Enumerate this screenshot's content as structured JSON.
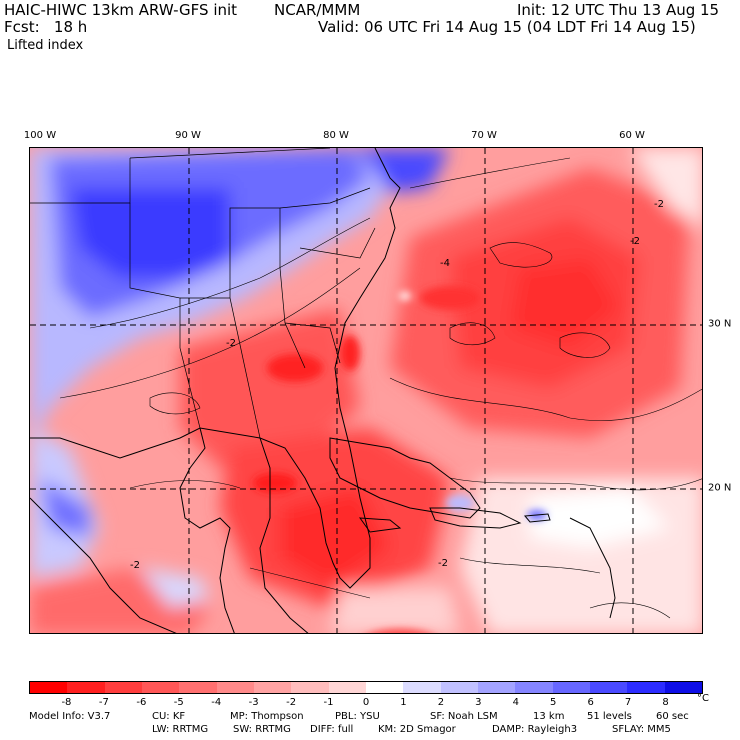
{
  "header": {
    "model": "HAIC-HIWC 13km ARW-GFS init",
    "org": "NCAR/MMM",
    "init": "Init: 12 UTC Thu 13 Aug 15",
    "fcst": "Fcst:   18 h",
    "valid": "Valid: 06 UTC Fri 14 Aug 15 (04 LDT Fri 14 Aug 15)",
    "field": "Lifted index"
  },
  "map": {
    "lon_labels": [
      "100 W",
      "90 W",
      "80 W",
      "70 W",
      "60 W"
    ],
    "lat_labels": [
      "30 N",
      "20 N"
    ],
    "contour_labels": [
      "-2",
      "-2",
      "-2",
      "-2",
      "-4",
      "-2"
    ]
  },
  "colorbar": {
    "ticks": [
      "-8",
      "-7",
      "-6",
      "-5",
      "-4",
      "-3",
      "-2",
      "-1",
      "0",
      "1",
      "2",
      "3",
      "4",
      "5",
      "6",
      "7",
      "8"
    ],
    "unit": "°C",
    "colors": [
      "#ff0000",
      "#ff1f1f",
      "#ff3d3d",
      "#ff5757",
      "#ff7070",
      "#ff8a8a",
      "#ffa3a3",
      "#ffbdbd",
      "#ffd6d6",
      "#ffffff",
      "#dcdcff",
      "#c1c1ff",
      "#a3a3ff",
      "#8585ff",
      "#6767ff",
      "#4a4aff",
      "#2c2cff",
      "#0e0ee6"
    ]
  },
  "footer": {
    "row1": [
      "Model Info: V3.7",
      "CU: KF",
      "MP: Thompson",
      "PBL: YSU",
      "SF: Noah LSM",
      "13 km",
      "51 levels",
      "60 sec"
    ],
    "row2": [
      "LW: RRTMG",
      "SW: RRTMG",
      "DIFF: full",
      "KM: 2D Smagor",
      "DAMP: Rayleigh3",
      "SFLAY: MM5"
    ]
  }
}
